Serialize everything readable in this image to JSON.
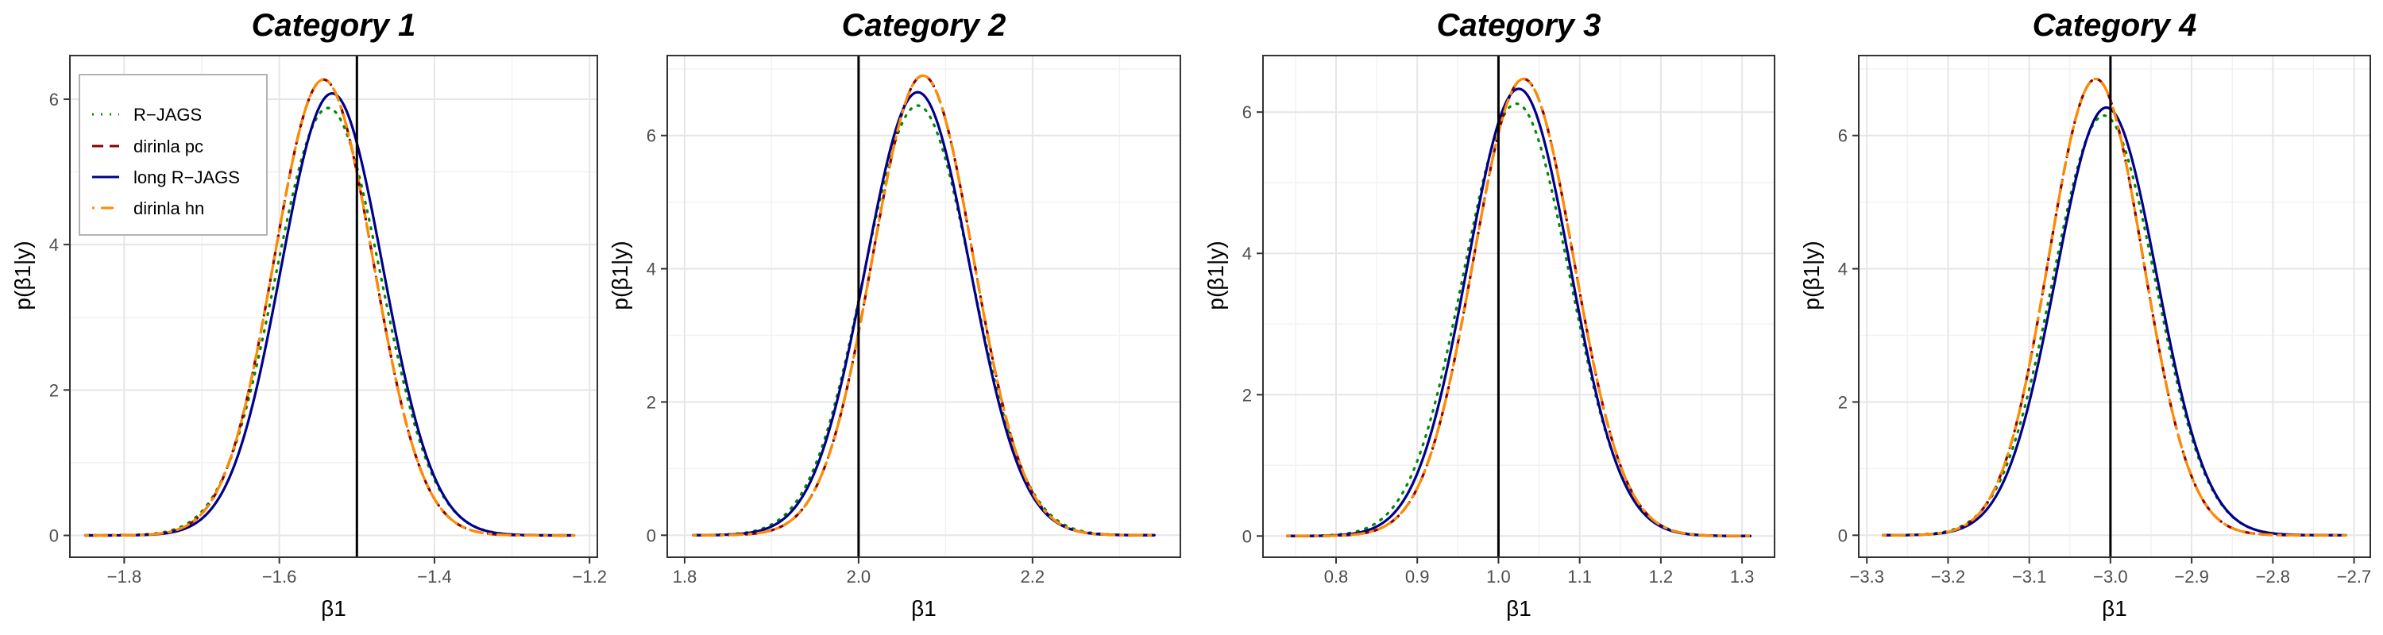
{
  "chart_data": [
    {
      "type": "line",
      "title": "Category 1",
      "xlabel": "β1",
      "ylabel": "p(β1|y)",
      "xlim": [
        -1.87,
        -1.19
      ],
      "ylim": [
        -0.3,
        6.6
      ],
      "xticks": [
        -1.8,
        -1.6,
        -1.4,
        -1.2
      ],
      "xtick_labels": [
        "−1.8",
        "−1.6",
        "−1.4",
        "−1.2"
      ],
      "yticks": [
        0,
        2,
        4,
        6
      ],
      "vline": -1.5,
      "x_range": [
        -1.85,
        -1.22
      ],
      "grid": true,
      "legend": "top-left",
      "series": [
        {
          "name": "R−JAGS",
          "mean": -1.537,
          "peak": 5.88,
          "color": "#008B00",
          "dash": "dotted"
        },
        {
          "name": "dirinla pc",
          "mean": -1.543,
          "peak": 6.27,
          "color": "#8B0000",
          "dash": "dashed"
        },
        {
          "name": "long R−JAGS",
          "mean": -1.532,
          "peak": 6.08,
          "color": "#00008B",
          "dash": "solid"
        },
        {
          "name": "dirinla hn",
          "mean": -1.543,
          "peak": 6.27,
          "color": "#FF8C00",
          "dash": "dotdash"
        }
      ]
    },
    {
      "type": "line",
      "title": "Category 2",
      "xlabel": "β1",
      "ylabel": "p(β1|y)",
      "xlim": [
        1.78,
        2.37
      ],
      "ylim": [
        -0.33,
        7.2
      ],
      "xticks": [
        1.8,
        2.0,
        2.2
      ],
      "xtick_labels": [
        "1.8",
        "2.0",
        "2.2"
      ],
      "yticks": [
        0,
        2,
        4,
        6
      ],
      "vline": 2.0,
      "x_range": [
        1.81,
        2.34
      ],
      "grid": true,
      "series": [
        {
          "name": "R−JAGS",
          "mean": 2.068,
          "peak": 6.45,
          "color": "#008B00",
          "dash": "dotted"
        },
        {
          "name": "dirinla pc",
          "mean": 2.074,
          "peak": 6.9,
          "color": "#8B0000",
          "dash": "dashed"
        },
        {
          "name": "long R−JAGS",
          "mean": 2.068,
          "peak": 6.65,
          "color": "#00008B",
          "dash": "solid"
        },
        {
          "name": "dirinla hn",
          "mean": 2.074,
          "peak": 6.9,
          "color": "#FF8C00",
          "dash": "dotdash"
        }
      ]
    },
    {
      "type": "line",
      "title": "Category 3",
      "xlabel": "β1",
      "ylabel": "p(β1|y)",
      "xlim": [
        0.71,
        1.34
      ],
      "ylim": [
        -0.3,
        6.8
      ],
      "xticks": [
        0.8,
        0.9,
        1.0,
        1.1,
        1.2,
        1.3
      ],
      "xtick_labels": [
        "0.8",
        "0.9",
        "1.0",
        "1.1",
        "1.2",
        "1.3"
      ],
      "yticks": [
        0,
        2,
        4,
        6
      ],
      "vline": 1.0,
      "x_range": [
        0.74,
        1.31
      ],
      "grid": true,
      "series": [
        {
          "name": "R−JAGS",
          "mean": 1.022,
          "peak": 6.12,
          "color": "#008B00",
          "dash": "dotted"
        },
        {
          "name": "dirinla pc",
          "mean": 1.031,
          "peak": 6.47,
          "color": "#8B0000",
          "dash": "dashed"
        },
        {
          "name": "long R−JAGS",
          "mean": 1.025,
          "peak": 6.33,
          "color": "#00008B",
          "dash": "solid"
        },
        {
          "name": "dirinla hn",
          "mean": 1.031,
          "peak": 6.47,
          "color": "#FF8C00",
          "dash": "dotdash"
        }
      ]
    },
    {
      "type": "line",
      "title": "Category 4",
      "xlabel": "β1",
      "ylabel": "p(β1|y)",
      "xlim": [
        -3.31,
        -2.68
      ],
      "ylim": [
        -0.33,
        7.2
      ],
      "xticks": [
        -3.3,
        -3.2,
        -3.1,
        -3.0,
        -2.9,
        -2.8,
        -2.7
      ],
      "xtick_labels": [
        "−3.3",
        "−3.2",
        "−3.1",
        "−3.0",
        "−2.9",
        "−2.8",
        "−2.7"
      ],
      "yticks": [
        0,
        2,
        4,
        6
      ],
      "vline": -3.0,
      "x_range": [
        -3.28,
        -2.71
      ],
      "grid": true,
      "series": [
        {
          "name": "R−JAGS",
          "mean": -3.008,
          "peak": 6.3,
          "color": "#008B00",
          "dash": "dotted"
        },
        {
          "name": "dirinla pc",
          "mean": -3.018,
          "peak": 6.85,
          "color": "#8B0000",
          "dash": "dashed"
        },
        {
          "name": "long R−JAGS",
          "mean": -3.005,
          "peak": 6.42,
          "color": "#00008B",
          "dash": "solid"
        },
        {
          "name": "dirinla hn",
          "mean": -3.018,
          "peak": 6.85,
          "color": "#FF8C00",
          "dash": "dotdash"
        }
      ]
    }
  ]
}
